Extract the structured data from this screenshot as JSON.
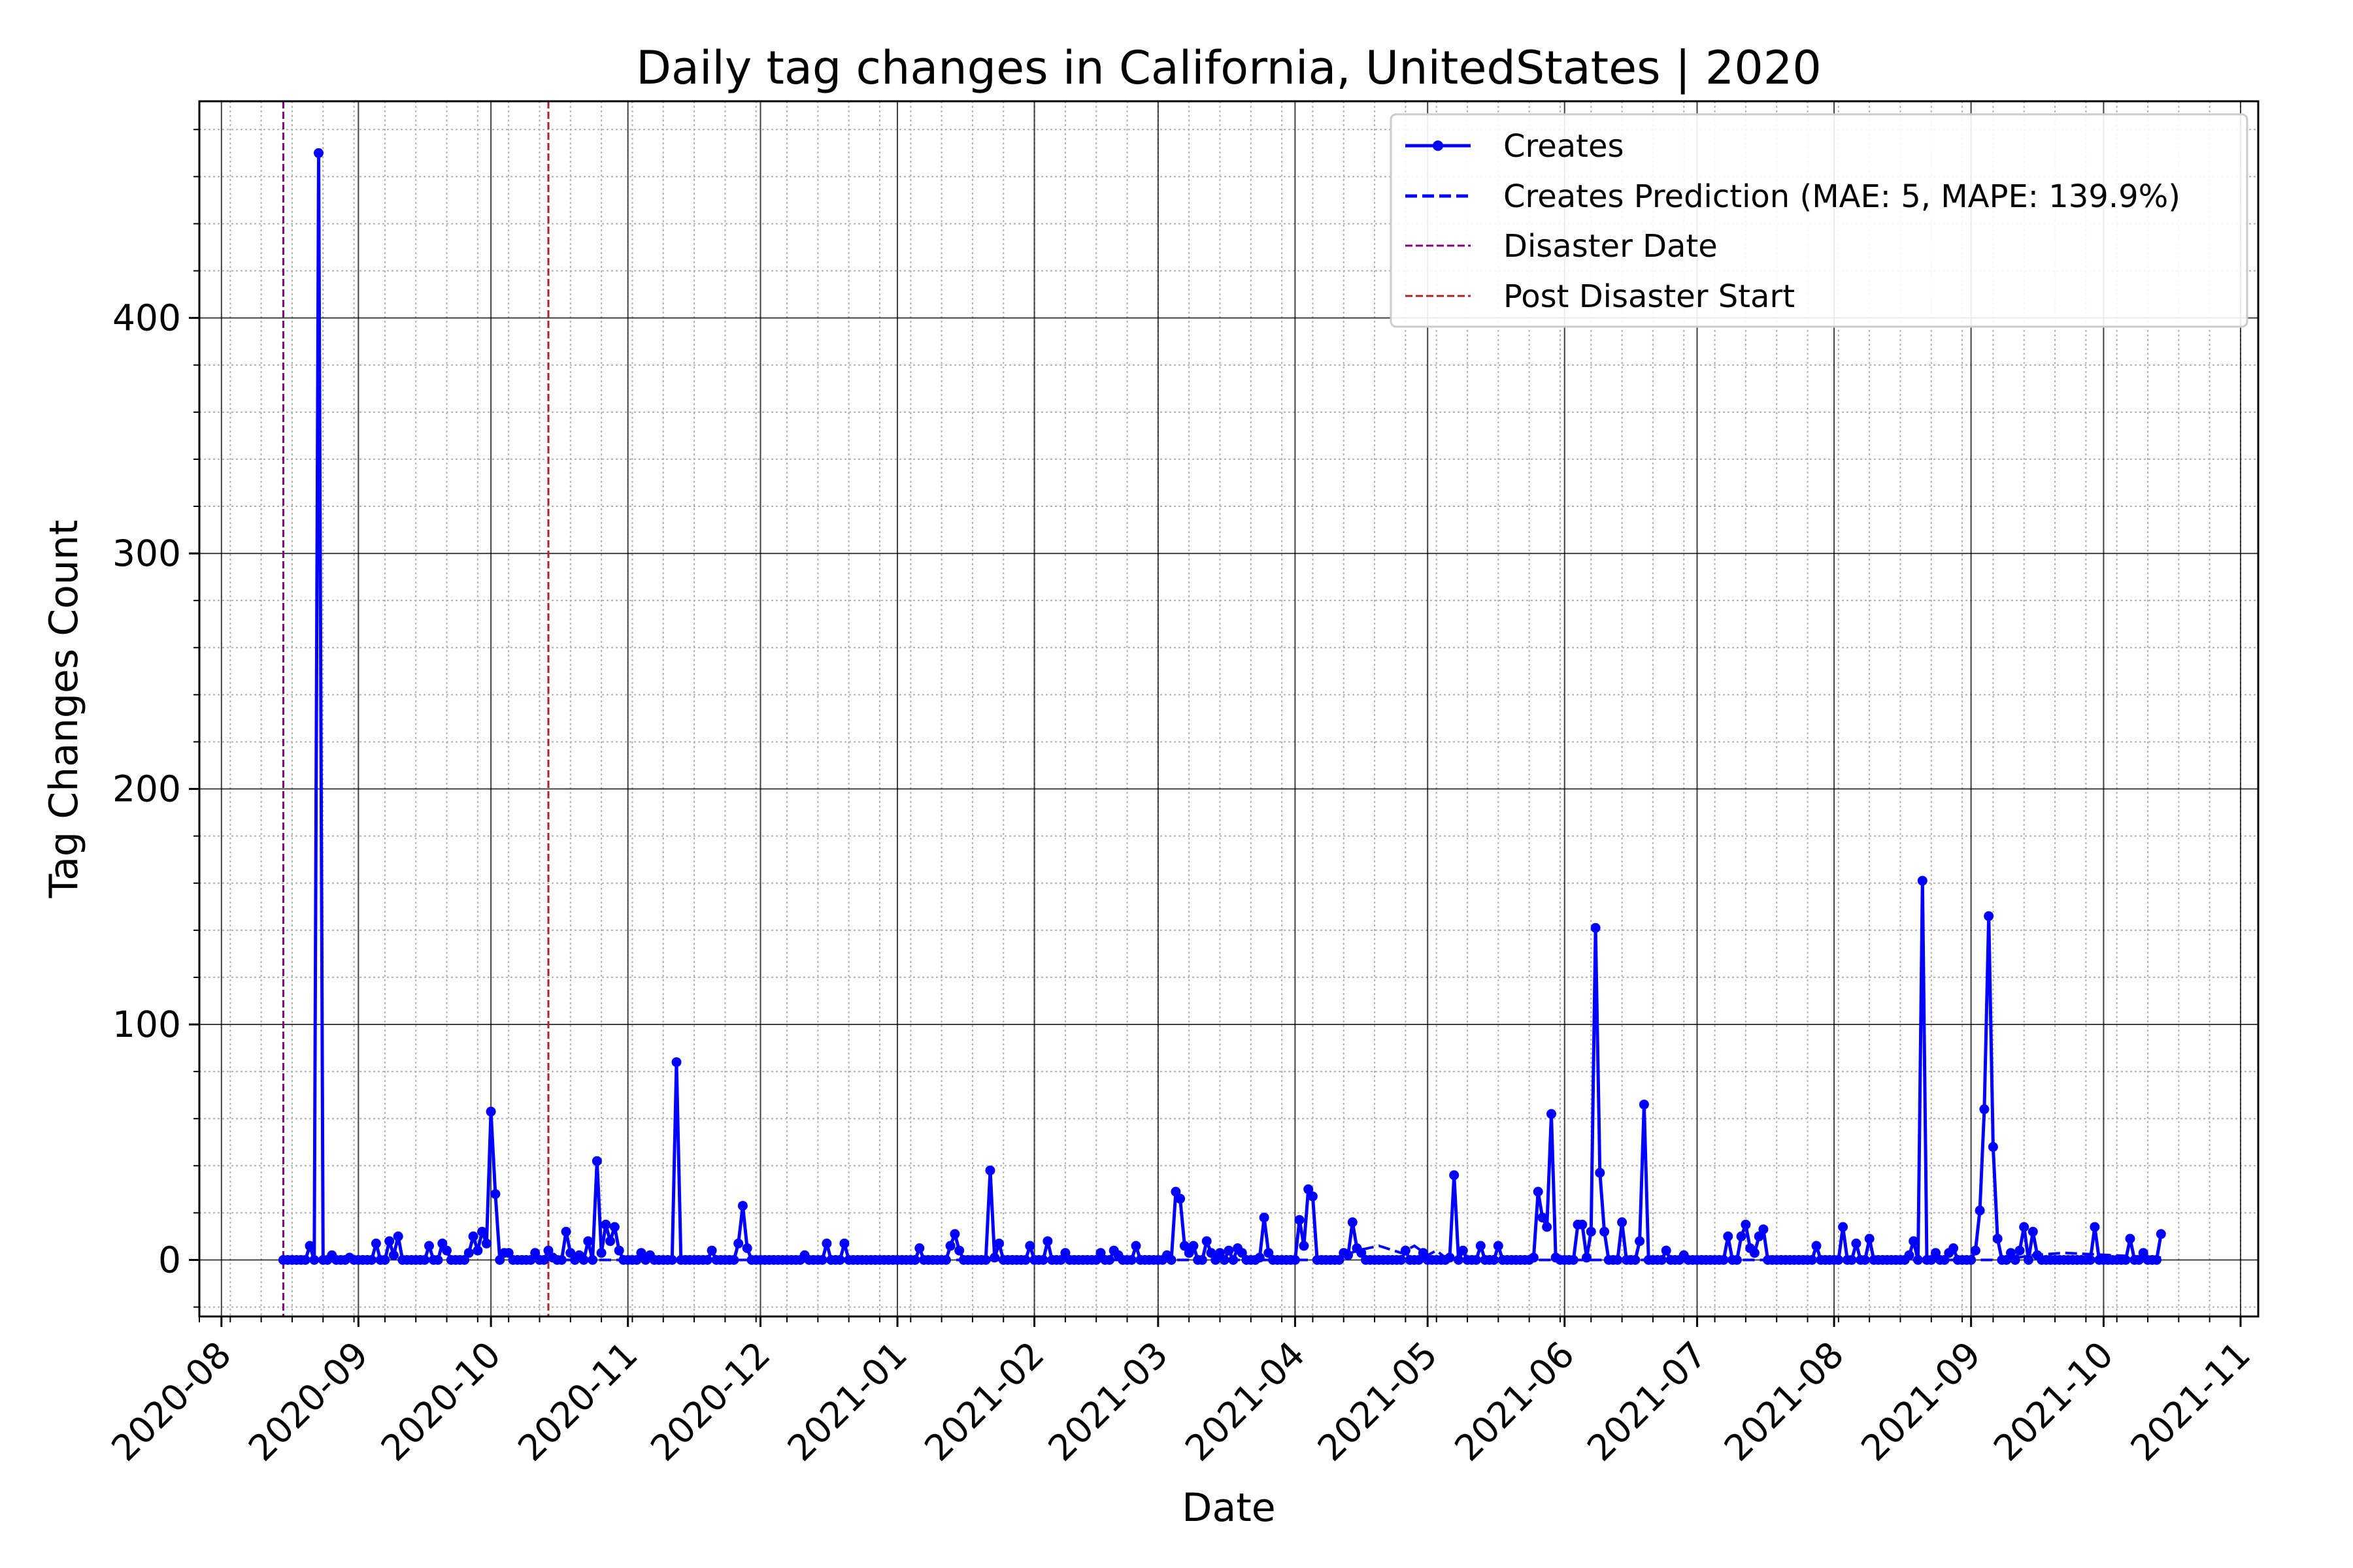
{
  "chart_data": {
    "type": "line",
    "title": "Daily tag changes in California, UnitedStates | 2020",
    "xlabel": "Date",
    "ylabel": "Tag Changes Count",
    "xlim": [
      "2020-07-27",
      "2021-11-05"
    ],
    "ylim": [
      -24,
      492
    ],
    "x_ticks": [
      "2020-08",
      "2020-09",
      "2020-10",
      "2020-11",
      "2020-12",
      "2021-01",
      "2021-02",
      "2021-03",
      "2021-04",
      "2021-05",
      "2021-06",
      "2021-07",
      "2021-08",
      "2021-09",
      "2021-10",
      "2021-11"
    ],
    "y_ticks": [
      0,
      100,
      200,
      300,
      400
    ],
    "grid": true,
    "legend_position": "top-right",
    "series": [
      {
        "name": "Creates",
        "style": "solid-with-markers",
        "color": "#0000ff",
        "baseline": {
          "start": "2020-08-15",
          "end": "2021-10-14",
          "value": 0
        },
        "points": [
          [
            "2020-08-15",
            0
          ],
          [
            "2020-08-21",
            6
          ],
          [
            "2020-08-22",
            0
          ],
          [
            "2020-08-23",
            470
          ],
          [
            "2020-08-24",
            0
          ],
          [
            "2020-08-26",
            2
          ],
          [
            "2020-08-30",
            1
          ],
          [
            "2020-09-05",
            7
          ],
          [
            "2020-09-06",
            0
          ],
          [
            "2020-09-08",
            8
          ],
          [
            "2020-09-09",
            2
          ],
          [
            "2020-09-10",
            10
          ],
          [
            "2020-09-11",
            0
          ],
          [
            "2020-09-17",
            6
          ],
          [
            "2020-09-18",
            0
          ],
          [
            "2020-09-20",
            7
          ],
          [
            "2020-09-21",
            4
          ],
          [
            "2020-09-22",
            0
          ],
          [
            "2020-09-26",
            3
          ],
          [
            "2020-09-27",
            10
          ],
          [
            "2020-09-28",
            4
          ],
          [
            "2020-09-29",
            12
          ],
          [
            "2020-09-30",
            7
          ],
          [
            "2020-10-01",
            63
          ],
          [
            "2020-10-02",
            28
          ],
          [
            "2020-10-03",
            0
          ],
          [
            "2020-10-04",
            3
          ],
          [
            "2020-10-05",
            3
          ],
          [
            "2020-10-06",
            0
          ],
          [
            "2020-10-11",
            3
          ],
          [
            "2020-10-12",
            0
          ],
          [
            "2020-10-14",
            4
          ],
          [
            "2020-10-15",
            1
          ],
          [
            "2020-10-18",
            12
          ],
          [
            "2020-10-19",
            3
          ],
          [
            "2020-10-21",
            2
          ],
          [
            "2020-10-23",
            8
          ],
          [
            "2020-10-24",
            0
          ],
          [
            "2020-10-25",
            42
          ],
          [
            "2020-10-26",
            3
          ],
          [
            "2020-10-27",
            15
          ],
          [
            "2020-10-28",
            8
          ],
          [
            "2020-10-29",
            14
          ],
          [
            "2020-10-30",
            4
          ],
          [
            "2020-11-04",
            3
          ],
          [
            "2020-11-06",
            2
          ],
          [
            "2020-11-11",
            0
          ],
          [
            "2020-11-12",
            84
          ],
          [
            "2020-11-13",
            0
          ],
          [
            "2020-11-20",
            4
          ],
          [
            "2020-11-21",
            0
          ],
          [
            "2020-11-26",
            7
          ],
          [
            "2020-11-27",
            23
          ],
          [
            "2020-11-28",
            5
          ],
          [
            "2020-11-29",
            0
          ],
          [
            "2020-12-11",
            2
          ],
          [
            "2020-12-16",
            7
          ],
          [
            "2020-12-17",
            0
          ],
          [
            "2020-12-20",
            7
          ],
          [
            "2020-12-21",
            0
          ],
          [
            "2021-01-06",
            5
          ],
          [
            "2021-01-07",
            0
          ],
          [
            "2021-01-13",
            6
          ],
          [
            "2021-01-14",
            11
          ],
          [
            "2021-01-15",
            4
          ],
          [
            "2021-01-21",
            0
          ],
          [
            "2021-01-22",
            38
          ],
          [
            "2021-01-23",
            1
          ],
          [
            "2021-01-24",
            7
          ],
          [
            "2021-01-25",
            0
          ],
          [
            "2021-01-31",
            6
          ],
          [
            "2021-02-01",
            0
          ],
          [
            "2021-02-04",
            8
          ],
          [
            "2021-02-05",
            0
          ],
          [
            "2021-02-08",
            3
          ],
          [
            "2021-02-09",
            0
          ],
          [
            "2021-02-16",
            3
          ],
          [
            "2021-02-17",
            0
          ],
          [
            "2021-02-19",
            4
          ],
          [
            "2021-02-20",
            2
          ],
          [
            "2021-02-24",
            6
          ],
          [
            "2021-02-25",
            0
          ],
          [
            "2021-03-03",
            2
          ],
          [
            "2021-03-05",
            29
          ],
          [
            "2021-03-06",
            26
          ],
          [
            "2021-03-07",
            6
          ],
          [
            "2021-03-08",
            3
          ],
          [
            "2021-03-09",
            6
          ],
          [
            "2021-03-12",
            8
          ],
          [
            "2021-03-13",
            3
          ],
          [
            "2021-03-15",
            3
          ],
          [
            "2021-03-17",
            4
          ],
          [
            "2021-03-19",
            5
          ],
          [
            "2021-03-20",
            3
          ],
          [
            "2021-03-21",
            0
          ],
          [
            "2021-03-24",
            1
          ],
          [
            "2021-03-25",
            18
          ],
          [
            "2021-03-26",
            3
          ],
          [
            "2021-03-27",
            0
          ],
          [
            "2021-04-02",
            17
          ],
          [
            "2021-04-03",
            6
          ],
          [
            "2021-04-04",
            30
          ],
          [
            "2021-04-05",
            27
          ],
          [
            "2021-04-06",
            0
          ],
          [
            "2021-04-12",
            3
          ],
          [
            "2021-04-13",
            2
          ],
          [
            "2021-04-14",
            16
          ],
          [
            "2021-04-15",
            5
          ],
          [
            "2021-04-16",
            3
          ],
          [
            "2021-04-17",
            0
          ],
          [
            "2021-04-26",
            4
          ],
          [
            "2021-04-30",
            3
          ],
          [
            "2021-05-01",
            0
          ],
          [
            "2021-05-06",
            1
          ],
          [
            "2021-05-07",
            36
          ],
          [
            "2021-05-08",
            0
          ],
          [
            "2021-05-09",
            4
          ],
          [
            "2021-05-10",
            0
          ],
          [
            "2021-05-13",
            6
          ],
          [
            "2021-05-14",
            0
          ],
          [
            "2021-05-17",
            6
          ],
          [
            "2021-05-18",
            0
          ],
          [
            "2021-05-25",
            1
          ],
          [
            "2021-05-26",
            29
          ],
          [
            "2021-05-27",
            18
          ],
          [
            "2021-05-28",
            14
          ],
          [
            "2021-05-29",
            62
          ],
          [
            "2021-05-30",
            1
          ],
          [
            "2021-06-03",
            0
          ],
          [
            "2021-06-04",
            15
          ],
          [
            "2021-06-05",
            15
          ],
          [
            "2021-06-06",
            1
          ],
          [
            "2021-06-07",
            12
          ],
          [
            "2021-06-08",
            141
          ],
          [
            "2021-06-09",
            37
          ],
          [
            "2021-06-10",
            12
          ],
          [
            "2021-06-11",
            0
          ],
          [
            "2021-06-14",
            16
          ],
          [
            "2021-06-15",
            0
          ],
          [
            "2021-06-18",
            8
          ],
          [
            "2021-06-19",
            66
          ],
          [
            "2021-06-20",
            0
          ],
          [
            "2021-06-24",
            4
          ],
          [
            "2021-06-25",
            0
          ],
          [
            "2021-06-28",
            2
          ],
          [
            "2021-06-29",
            0
          ],
          [
            "2021-07-08",
            10
          ],
          [
            "2021-07-09",
            0
          ],
          [
            "2021-07-11",
            10
          ],
          [
            "2021-07-12",
            15
          ],
          [
            "2021-07-13",
            5
          ],
          [
            "2021-07-14",
            3
          ],
          [
            "2021-07-15",
            10
          ],
          [
            "2021-07-16",
            13
          ],
          [
            "2021-07-17",
            0
          ],
          [
            "2021-07-28",
            6
          ],
          [
            "2021-07-29",
            0
          ],
          [
            "2021-08-03",
            14
          ],
          [
            "2021-08-04",
            0
          ],
          [
            "2021-08-06",
            7
          ],
          [
            "2021-08-07",
            0
          ],
          [
            "2021-08-09",
            9
          ],
          [
            "2021-08-10",
            0
          ],
          [
            "2021-08-18",
            2
          ],
          [
            "2021-08-19",
            8
          ],
          [
            "2021-08-20",
            0
          ],
          [
            "2021-08-21",
            161
          ],
          [
            "2021-08-22",
            0
          ],
          [
            "2021-08-24",
            3
          ],
          [
            "2021-08-25",
            0
          ],
          [
            "2021-08-27",
            3
          ],
          [
            "2021-08-28",
            5
          ],
          [
            "2021-08-29",
            0
          ],
          [
            "2021-09-02",
            4
          ],
          [
            "2021-09-03",
            21
          ],
          [
            "2021-09-04",
            64
          ],
          [
            "2021-09-05",
            146
          ],
          [
            "2021-09-06",
            48
          ],
          [
            "2021-09-07",
            9
          ],
          [
            "2021-09-08",
            0
          ],
          [
            "2021-09-10",
            3
          ],
          [
            "2021-09-12",
            4
          ],
          [
            "2021-09-13",
            14
          ],
          [
            "2021-09-14",
            0
          ],
          [
            "2021-09-15",
            12
          ],
          [
            "2021-09-16",
            2
          ],
          [
            "2021-09-17",
            0
          ],
          [
            "2021-09-29",
            14
          ],
          [
            "2021-09-30",
            0
          ],
          [
            "2021-10-07",
            9
          ],
          [
            "2021-10-08",
            0
          ],
          [
            "2021-10-10",
            3
          ],
          [
            "2021-10-11",
            0
          ],
          [
            "2021-10-14",
            11
          ]
        ]
      },
      {
        "name": "Creates Prediction (MAE: 5, MAPE: 139.9%)",
        "style": "dashed",
        "color": "#0000ff",
        "points": [
          [
            "2020-10-14",
            0
          ],
          [
            "2021-04-10",
            0
          ],
          [
            "2021-04-15",
            4
          ],
          [
            "2021-04-20",
            6
          ],
          [
            "2021-04-25",
            3
          ],
          [
            "2021-04-28",
            6
          ],
          [
            "2021-05-01",
            2
          ],
          [
            "2021-05-03",
            4
          ],
          [
            "2021-05-05",
            1
          ],
          [
            "2021-05-08",
            0
          ],
          [
            "2021-09-08",
            0
          ],
          [
            "2021-09-15",
            2
          ],
          [
            "2021-09-22",
            3
          ],
          [
            "2021-10-14",
            1
          ]
        ]
      },
      {
        "name": "Disaster Date",
        "style": "dashed-vertical",
        "color": "#800080",
        "date": "2020-08-15"
      },
      {
        "name": "Post Disaster Start",
        "style": "dashed-vertical",
        "color": "#b22222",
        "date": "2020-10-14"
      }
    ]
  }
}
